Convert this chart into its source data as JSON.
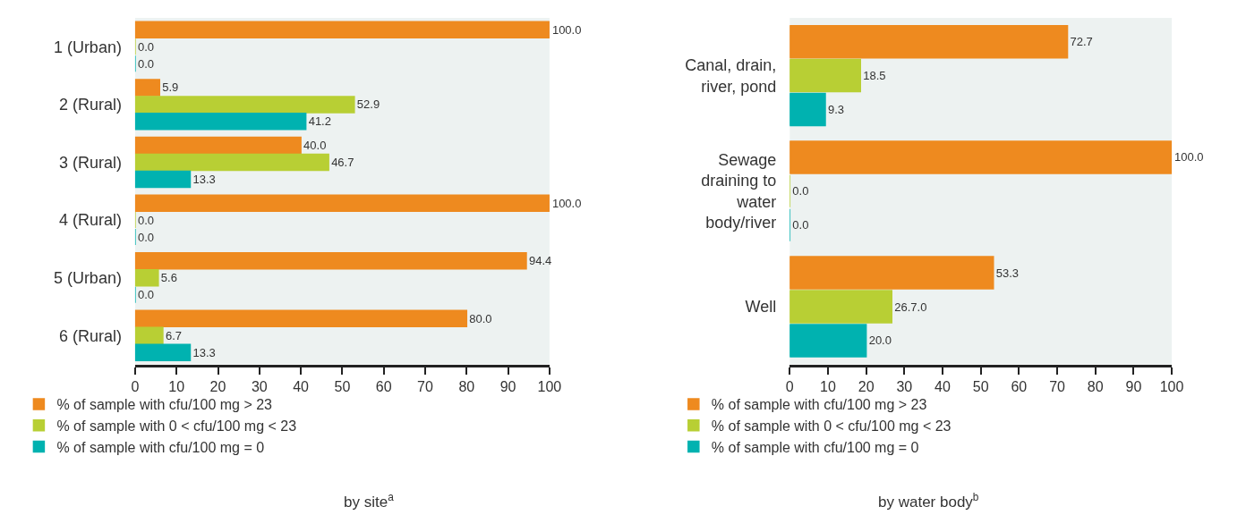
{
  "chart_data": [
    {
      "type": "bar",
      "orientation": "horizontal",
      "xlabel": "by site$^{a}$",
      "categories": [
        "1 (Urban)",
        "2 (Rural)",
        "3 (Rural)",
        "4 (Rural)",
        "5 (Urban)",
        "6 (Rural)"
      ],
      "xlim": [
        0,
        100
      ],
      "xticks": [
        0,
        10,
        20,
        30,
        40,
        50,
        60,
        70,
        80,
        90,
        100
      ],
      "grid": false,
      "legend": "bottom",
      "series": [
        {
          "name": "% of sample with cfu/100 mg > 23",
          "color": "#ee8a1f",
          "values": [
            100.0,
            5.9,
            40.0,
            100.0,
            94.4,
            80.0
          ],
          "value_labels": [
            "100.0",
            "5.9",
            "40.0",
            "100.0",
            "94.4",
            "80.0"
          ]
        },
        {
          "name": "% of sample with 0 < cfu/100 mg < 23",
          "color": "#b8cf34",
          "values": [
            0.0,
            52.9,
            46.7,
            0.0,
            5.6,
            6.7
          ],
          "value_labels": [
            "0.0",
            "52.9",
            "46.7",
            "0.0",
            "5.6",
            "6.7"
          ]
        },
        {
          "name": "% of sample with cfu/100 mg = 0",
          "color": "#00b2b0",
          "values": [
            0.0,
            41.2,
            13.3,
            0.0,
            0.0,
            13.3
          ],
          "value_labels": [
            "0.0",
            "41.2",
            "13.3",
            "0.0",
            "0.0",
            "13.3"
          ]
        }
      ]
    },
    {
      "type": "bar",
      "orientation": "horizontal",
      "xlabel": "by water body$^{b}$",
      "categories": [
        "Canal, drain, river, pond",
        "Sewage draining to water body/river",
        "Well"
      ],
      "xlim": [
        0,
        100
      ],
      "xticks": [
        0,
        10,
        20,
        30,
        40,
        50,
        60,
        70,
        80,
        90,
        100
      ],
      "grid": false,
      "legend": "bottom",
      "series": [
        {
          "name": "% of sample with cfu/100 mg > 23",
          "color": "#ee8a1f",
          "values": [
            72.7,
            100.0,
            53.3
          ],
          "value_labels": [
            "72.7",
            "100.0",
            "53.3"
          ]
        },
        {
          "name": "% of sample with 0 < cfu/100 mg < 23",
          "color": "#b8cf34",
          "values": [
            18.5,
            0.0,
            26.7
          ],
          "value_labels": [
            "18.5",
            "0.0",
            "26.7.0"
          ]
        },
        {
          "name": "% of sample with cfu/100 mg = 0",
          "color": "#00b2b0",
          "values": [
            9.3,
            0.0,
            20.0
          ],
          "value_labels": [
            "9.3",
            "0.0",
            "20.0"
          ]
        }
      ]
    }
  ]
}
